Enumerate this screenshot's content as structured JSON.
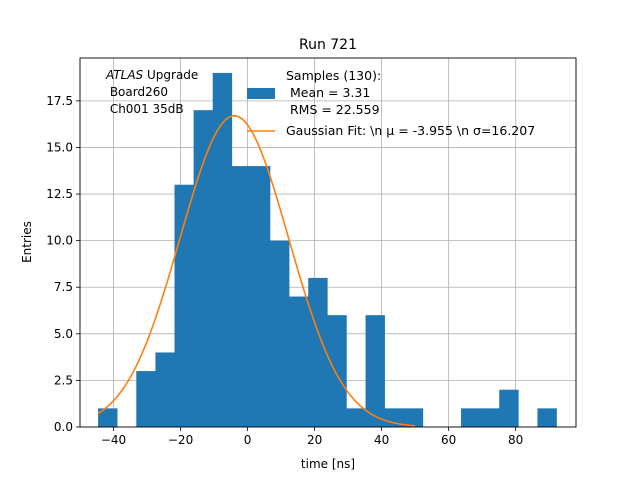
{
  "chart_data": {
    "type": "bar",
    "title": "Run 721",
    "xlabel": "time [ns]",
    "ylabel": "Entries",
    "xlim": [
      -50,
      98
    ],
    "ylim": [
      0,
      19.8
    ],
    "grid": true,
    "xticks": [
      -40,
      -20,
      0,
      20,
      40,
      60,
      80
    ],
    "yticks": [
      0.0,
      2.5,
      5.0,
      7.5,
      10.0,
      12.5,
      15.0,
      17.5
    ],
    "xtick_labels": [
      "−40",
      "−20",
      "0",
      "20",
      "40",
      "60",
      "80"
    ],
    "ytick_labels": [
      "0.0",
      "2.5",
      "5.0",
      "7.5",
      "10.0",
      "12.5",
      "15.0",
      "17.5"
    ],
    "histogram": {
      "bin_start": -44.6,
      "bin_width": 5.7,
      "counts": [
        1,
        0,
        3,
        4,
        13,
        17,
        19,
        14,
        14,
        10,
        7,
        8,
        6,
        1,
        6,
        1,
        1,
        0,
        0,
        1,
        1,
        2,
        0,
        1
      ],
      "color": "#1f77b4"
    },
    "fit": {
      "type": "gaussian",
      "amplitude": 16.7,
      "mean": -3.955,
      "sigma": 16.207,
      "x_range": [
        -44.6,
        50
      ],
      "color": "#ff7f0e"
    },
    "annotation": {
      "line1_italic": "ATLAS",
      "line1_rest": " Upgrade",
      "line2": " Board260",
      "line3": " Ch001 35dB"
    },
    "legend": {
      "position": "top-right",
      "hist_lines": [
        "Samples (130):",
        " Mean = 3.31",
        " RMS = 22.559"
      ],
      "fit_label": "Gaussian Fit: \\n μ = -3.955 \\n σ=16.207"
    }
  }
}
